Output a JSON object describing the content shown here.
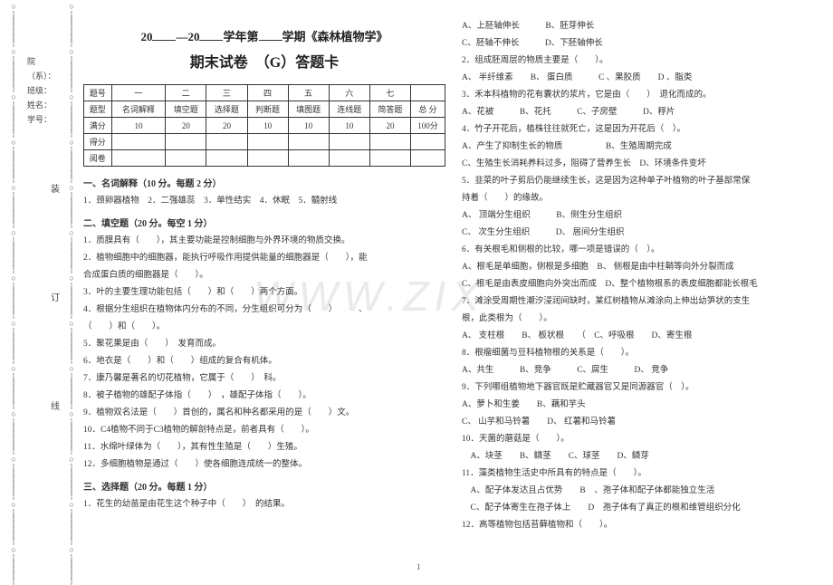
{
  "watermark": "WWW.ZIX",
  "page_number": "1",
  "binding": {
    "chars": [
      "装",
      "订",
      "线"
    ]
  },
  "side_labels": [
    "院（系）：",
    "班级：",
    "姓名：",
    "学号："
  ],
  "header": {
    "line1_pre": "20",
    "line1_mid": "—20",
    "line1_post": "学年第",
    "line1_end": "学期《森林植物学》",
    "line2": "期末试卷　（G）答题卡"
  },
  "score_table": {
    "row1": [
      "题号",
      "一",
      "二",
      "三",
      "四",
      "五",
      "六",
      "七",
      ""
    ],
    "row2": [
      "题型",
      "名词解释",
      "填空题",
      "选择题",
      "判断题",
      "填图题",
      "连线题",
      "简答题",
      "总 分"
    ],
    "row3": [
      "满分",
      "10",
      "20",
      "20",
      "10",
      "10",
      "10",
      "20",
      "100分"
    ],
    "row4": [
      "得分",
      "",
      "",
      "",
      "",
      "",
      "",
      "",
      ""
    ],
    "row5": [
      "阅卷",
      "",
      "",
      "",
      "",
      "",
      "",
      "",
      ""
    ]
  },
  "left_sections": [
    {
      "head": "一、名词解释（10 分。每题 2 分）",
      "lines": [
        "1．颈卵器植物　2．二强雄蕊　3．单性结实　4．休眠　5．髓射线"
      ]
    },
    {
      "head": "二、填空题（20 分。每空 1 分）",
      "lines": [
        "1．质膜具有（　　），其主要功能是控制细胞与外界环境的物质交换。",
        "2．植物细胞中的细胞器，能执行呼吸作用提供能量的细胞器是（　　），能",
        "合成蛋白质的细胞器是（　　）。",
        "3．叶的主要生理功能包括（　　）和（　　）两个方面。",
        "4．根据分生组织在植物体内分布的不同，分生组织可分为（　　）　　　、",
        "（　　）和（　　）。",
        "5．聚花果是由（　　）　发育而成。",
        "6．地衣是（　　）和（　　）组成的复合有机体。",
        "7．康乃馨是著名的切花植物，它属于（　　）　科。",
        "8．被子植物的雄配子体指（　　）　，雄配子体指（　　）。",
        "9．植物双名法是（　　）首创的，属名和种名都采用的是（　　）文。",
        "10．C4植物不同于C3植物的解剖特点是，前者具有（　　）。",
        "11．水绵叶绿体为（　　），其有性生殖是（　　）生殖。",
        "12．多细胞植物是通过（　　）使各细胞连成统一的整体。"
      ]
    },
    {
      "head": "三、选择题（20 分。每题 1 分）",
      "lines": [
        "1．花生的幼苗是由花生这个种子中（　　）　的结果。"
      ]
    }
  ],
  "right_lines": [
    "A、上胚轴伸长　　　B、胚芽伸长",
    "C、胚轴不伸长　　　D、下胚轴伸长",
    "2．组成胚周层的物质主要是（　　）。",
    "A、 半纤维素　　B、 蛋白质　　　C 、果胶质　　D 、脂类",
    "3．禾本科植物的花有囊状的浆片，它是由（　　）　退化而成的。",
    "A、花被　　　B、花托　　　C、子房壁　　　D、稃片",
    "4．竹子开花后，植株往往就死亡，这是因为开花后（　）。",
    "A、产生了抑制生长的物质　　　　　B、生殖周期完成",
    "C、生殖生长消耗养料过多，阻碍了营养生长　D、环境条件变坏",
    "5．韭菜的叶子剪后仍能继续生长，这是因为这种单子叶植物的叶子基部常保",
    "持着（　　）的缘故。",
    "A、 顶端分生组织　　　B、侧生分生组织",
    "C、 次生分生组织　　　D、 居间分生组织",
    "6．有关根毛和侧根的比较，哪一项是错误的（　）。",
    "A、根毛是单细胞，侧根是多细胞　B、 侧根是由中柱鞘等向外分裂而成",
    "C、根毛是由表皮细胞向外突出而成　D、整个植物根系的表皮细胞都能长根毛",
    "7．滩涂受周期性潮汐浸润间缺时，某红树植物从滩涂向上伸出幼笋状的支生",
    "根，此类根为（　　）。",
    "A、 支柱根　　B、 板状根　　（　C、呼吸根　　D、寄生根",
    "8．根瘤细菌与豆科植物根的关系是（　　）。",
    "A、共生　　　B、竞争　　　C、腐生　　　D、 竞争",
    "9．下列哪组植物地下器官既是贮藏器官又是同源器官（　）。",
    "A、萝卜和生姜　　B、藕和芋头",
    "C、 山芋和马铃薯　　D、 红薯和马铃薯",
    "10．天菌的蘑菇是（　　）。",
    "　A、块茎　　B、鳞茎　　C、球茎　　D、鳞芽",
    "11．藻类植物生活史中所具有的特点是（　　）。",
    "　A、配子体发达且占优势　　B　、孢子体和配子体都能独立生活",
    "　C、配子体寄生在孢子体上　　D　孢子体有了真正的根和维管组织分化",
    "12．高等植物包括苔藓植物和（　　）。"
  ]
}
